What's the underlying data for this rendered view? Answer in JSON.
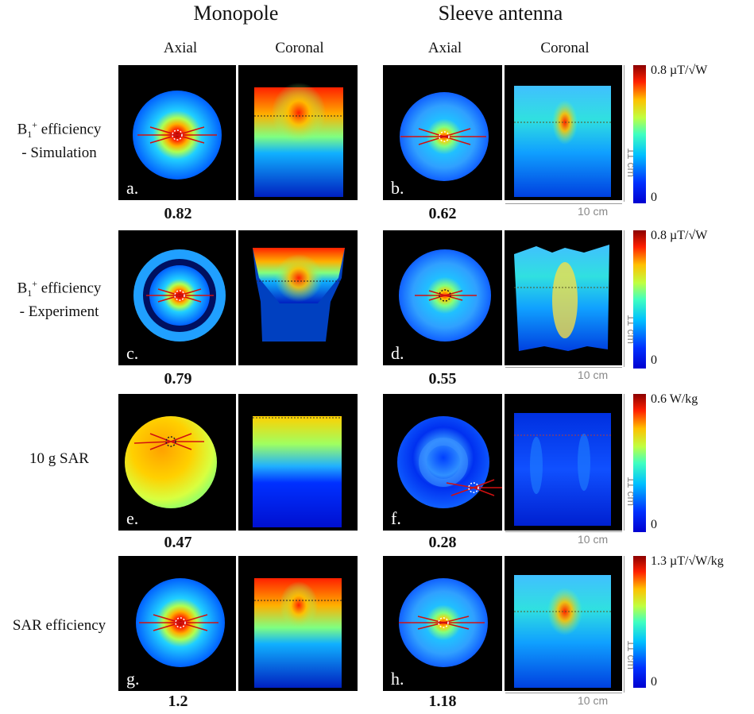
{
  "columns": {
    "monopole": "Monopole",
    "sleeve": "Sleeve antenna"
  },
  "views": {
    "axial": "Axial",
    "coronal": "Coronal"
  },
  "rows": [
    {
      "label_main": "B",
      "label_sub": "1",
      "label_sup": "+",
      "label_rest": " efficiency",
      "label_line2": "- Simulation",
      "panels": [
        {
          "letter": "a.",
          "value": "0.82"
        },
        {
          "letter": "b.",
          "value": "0.62"
        }
      ],
      "colorbar": {
        "max_label": "0.8 µT/√W",
        "min_label": "0"
      }
    },
    {
      "label_main": "B",
      "label_sub": "1",
      "label_sup": "+",
      "label_rest": " efficiency",
      "label_line2": "- Experiment",
      "panels": [
        {
          "letter": "c.",
          "value": "0.79"
        },
        {
          "letter": "d.",
          "value": "0.55"
        }
      ],
      "colorbar": {
        "max_label": "0.8 µT/√W",
        "min_label": "0"
      }
    },
    {
      "label_main": "10 g SAR",
      "label_sub": "",
      "label_sup": "",
      "label_rest": "",
      "label_line2": "",
      "panels": [
        {
          "letter": "e.",
          "value": "0.47"
        },
        {
          "letter": "f.",
          "value": "0.28"
        }
      ],
      "colorbar": {
        "max_label": "0.6 W/kg",
        "min_label": "0"
      }
    },
    {
      "label_main": "SAR efficiency",
      "label_sub": "",
      "label_sup": "",
      "label_rest": "",
      "label_line2": "",
      "panels": [
        {
          "letter": "g.",
          "value": "1.2"
        },
        {
          "letter": "h.",
          "value": "1.18"
        }
      ],
      "colorbar": {
        "max_label": "1.3 µT/√W/kg",
        "min_label": "0"
      }
    }
  ],
  "scale": {
    "horizontal": "10 cm",
    "vertical": "11 cm"
  },
  "colors": {
    "jet_high": "#8b0000",
    "jet_mid": "#00c0ff",
    "jet_low": "#0000c8"
  }
}
